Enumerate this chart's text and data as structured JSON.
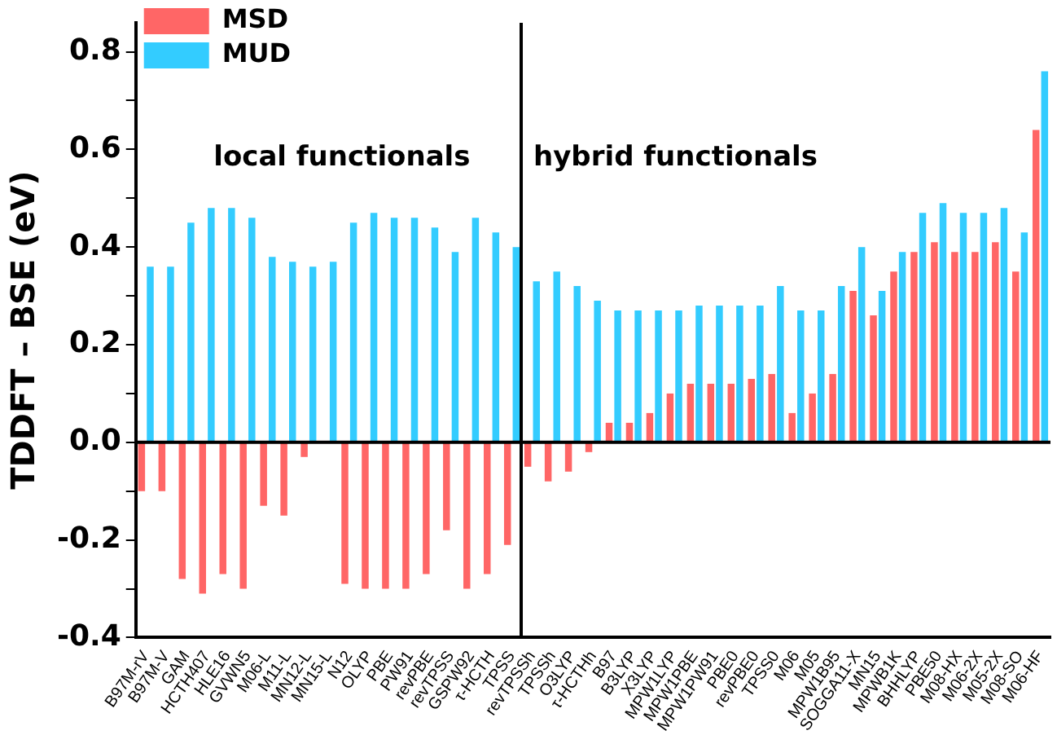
{
  "chart_data": {
    "type": "bar",
    "ylabel": "TDDFT – BSE (eV)",
    "categories": [
      "B97M-rV",
      "B97M-V",
      "GAM",
      "HCTH407",
      "HLE16",
      "GVWN5",
      "M06-L",
      "M11-L",
      "MN12-L",
      "MN15-L",
      "N12",
      "OLYP",
      "PBE",
      "PW91",
      "revPBE",
      "revTPSS",
      "GSPW92",
      "τ-HCTH",
      "TPSS",
      "revTPSSh",
      "TPSSh",
      "O3LYP",
      "τ-HCTHh",
      "B97",
      "B3LYP",
      "X3LYP",
      "MPW1LYP",
      "MPW1PBE",
      "MPW1PW91",
      "PBE0",
      "revPBE0",
      "TPSS0",
      "M06",
      "M05",
      "MPW1B95",
      "SOGGA11-X",
      "MN15",
      "MPWB1K",
      "BHHLYP",
      "PBE50",
      "M08-HX",
      "M06-2X",
      "M05-2X",
      "M08-SO",
      "M06-HF"
    ],
    "series": [
      {
        "name": "MSD",
        "color": "#ff6666",
        "values": [
          -0.1,
          -0.1,
          -0.28,
          -0.31,
          -0.27,
          -0.3,
          -0.13,
          -0.15,
          -0.03,
          0,
          -0.29,
          -0.3,
          -0.3,
          -0.3,
          -0.27,
          -0.18,
          -0.3,
          -0.27,
          -0.21,
          -0.05,
          -0.08,
          -0.06,
          -0.02,
          0.04,
          0.04,
          0.06,
          0.1,
          0.12,
          0.12,
          0.12,
          0.13,
          0.14,
          0.06,
          0.1,
          0.14,
          0.31,
          0.26,
          0.35,
          0.39,
          0.41,
          0.39,
          0.39,
          0.41,
          0.35,
          0.64
        ]
      },
      {
        "name": "MUD",
        "color": "#33ccff",
        "values": [
          0.36,
          0.36,
          0.45,
          0.48,
          0.48,
          0.46,
          0.38,
          0.37,
          0.36,
          0.37,
          0.45,
          0.47,
          0.46,
          0.46,
          0.44,
          0.39,
          0.46,
          0.43,
          0.4,
          0.33,
          0.35,
          0.32,
          0.29,
          0.27,
          0.27,
          0.27,
          0.27,
          0.28,
          0.28,
          0.28,
          0.28,
          0.32,
          0.27,
          0.27,
          0.32,
          0.4,
          0.31,
          0.39,
          0.47,
          0.49,
          0.47,
          0.47,
          0.48,
          0.43,
          0.76
        ]
      }
    ],
    "ylim": [
      -0.4,
      0.86
    ],
    "yticks": [
      {
        "value": -0.4,
        "label": "-0.4"
      },
      {
        "value": -0.3,
        "label": null
      },
      {
        "value": -0.2,
        "label": "-0.2"
      },
      {
        "value": -0.1,
        "label": null
      },
      {
        "value": 0,
        "label": "0.0"
      },
      {
        "value": 0.1,
        "label": null
      },
      {
        "value": 0.2,
        "label": "0.2"
      },
      {
        "value": 0.3,
        "label": null
      },
      {
        "value": 0.4,
        "label": "0.4"
      },
      {
        "value": 0.5,
        "label": null
      },
      {
        "value": 0.6,
        "label": "0.6"
      },
      {
        "value": 0.7,
        "label": null
      },
      {
        "value": 0.8,
        "label": "0.8"
      }
    ],
    "ref_lines": [
      {
        "axis": "y",
        "value": 0,
        "color": "#000000"
      }
    ],
    "annotations": [
      "local functionals",
      "hybrid functionals"
    ],
    "legend": "top left",
    "grid": false
  }
}
